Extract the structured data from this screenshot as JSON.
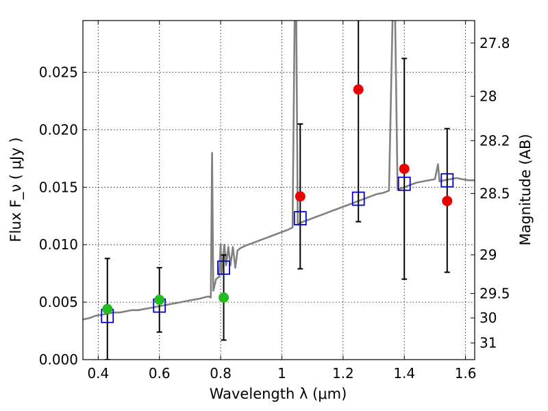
{
  "chart_data": {
    "type": "scatter",
    "title": "",
    "xlabel": "Wavelength  λ (μm)",
    "ylabel": "Flux  F_ν  ( μJy )",
    "ylabel_right": "Magnitude (AB)",
    "xlim": [
      0.35,
      1.63
    ],
    "ylim": [
      0,
      0.0295
    ],
    "grid": true,
    "x_ticks": [
      0.4,
      0.6,
      0.8,
      1.0,
      1.2,
      1.4,
      1.6
    ],
    "x_tick_labels": [
      "0.4",
      "0.6",
      "0.8",
      "1",
      "1.2",
      "1.4",
      "1.6"
    ],
    "y_ticks": [
      0,
      0.005,
      0.01,
      0.015,
      0.02,
      0.025
    ],
    "y_tick_labels": [
      "0.000",
      "0.005",
      "0.010",
      "0.015",
      "0.020",
      "0.025"
    ],
    "right_ticks": [
      {
        "mag": 27.8,
        "label": "27.8"
      },
      {
        "mag": 28.0,
        "label": "28"
      },
      {
        "mag": 28.2,
        "label": "28.2"
      },
      {
        "mag": 28.5,
        "label": "28.5"
      },
      {
        "mag": 29.0,
        "label": "29"
      },
      {
        "mag": 29.5,
        "label": "29.5"
      },
      {
        "mag": 30.0,
        "label": "30"
      },
      {
        "mag": 31.0,
        "label": "31"
      }
    ],
    "colors": {
      "model": "#808080",
      "model_phot": "#0000cc",
      "observed_detection": "#22bb22",
      "observed_upper": "#ee0000",
      "errorbar": "#000000"
    },
    "model_spectrum": [
      [
        0.35,
        0.0035
      ],
      [
        0.37,
        0.0036
      ],
      [
        0.39,
        0.0038
      ],
      [
        0.41,
        0.0039
      ],
      [
        0.43,
        0.004
      ],
      [
        0.45,
        0.0041
      ],
      [
        0.47,
        0.0041
      ],
      [
        0.49,
        0.0042
      ],
      [
        0.51,
        0.0043
      ],
      [
        0.53,
        0.0043
      ],
      [
        0.55,
        0.0044
      ],
      [
        0.57,
        0.0045
      ],
      [
        0.59,
        0.0046
      ],
      [
        0.61,
        0.0047
      ],
      [
        0.63,
        0.0048
      ],
      [
        0.65,
        0.0049
      ],
      [
        0.67,
        0.005
      ],
      [
        0.69,
        0.0051
      ],
      [
        0.71,
        0.0052
      ],
      [
        0.73,
        0.0053
      ],
      [
        0.745,
        0.0054
      ],
      [
        0.76,
        0.0055
      ],
      [
        0.768,
        0.0054
      ],
      [
        0.772,
        0.018
      ],
      [
        0.776,
        0.006
      ],
      [
        0.785,
        0.007
      ],
      [
        0.795,
        0.0072
      ],
      [
        0.8,
        0.01
      ],
      [
        0.803,
        0.0074
      ],
      [
        0.808,
        0.009
      ],
      [
        0.812,
        0.01
      ],
      [
        0.818,
        0.0082
      ],
      [
        0.825,
        0.0098
      ],
      [
        0.832,
        0.0082
      ],
      [
        0.84,
        0.0098
      ],
      [
        0.848,
        0.008
      ],
      [
        0.855,
        0.0095
      ],
      [
        0.865,
        0.0097
      ],
      [
        0.88,
        0.0099
      ],
      [
        0.9,
        0.0101
      ],
      [
        0.92,
        0.0103
      ],
      [
        0.94,
        0.0105
      ],
      [
        0.96,
        0.0107
      ],
      [
        0.98,
        0.0109
      ],
      [
        1.0,
        0.0111
      ],
      [
        1.02,
        0.0113
      ],
      [
        1.035,
        0.0115
      ],
      [
        1.042,
        0.03
      ],
      [
        1.047,
        0.03
      ],
      [
        1.052,
        0.0118
      ],
      [
        1.07,
        0.012
      ],
      [
        1.09,
        0.0122
      ],
      [
        1.11,
        0.0124
      ],
      [
        1.13,
        0.0126
      ],
      [
        1.15,
        0.0128
      ],
      [
        1.17,
        0.013
      ],
      [
        1.19,
        0.0132
      ],
      [
        1.21,
        0.0134
      ],
      [
        1.23,
        0.0136
      ],
      [
        1.25,
        0.0138
      ],
      [
        1.27,
        0.014
      ],
      [
        1.29,
        0.0142
      ],
      [
        1.31,
        0.0144
      ],
      [
        1.33,
        0.0145
      ],
      [
        1.35,
        0.0147
      ],
      [
        1.362,
        0.03
      ],
      [
        1.37,
        0.03
      ],
      [
        1.378,
        0.0148
      ],
      [
        1.4,
        0.015
      ],
      [
        1.42,
        0.0152
      ],
      [
        1.44,
        0.0154
      ],
      [
        1.46,
        0.0155
      ],
      [
        1.48,
        0.0156
      ],
      [
        1.5,
        0.0157
      ],
      [
        1.51,
        0.017
      ],
      [
        1.515,
        0.0155
      ],
      [
        1.53,
        0.0156
      ],
      [
        1.55,
        0.0157
      ],
      [
        1.57,
        0.0158
      ],
      [
        1.59,
        0.0157
      ],
      [
        1.61,
        0.0156
      ],
      [
        1.63,
        0.0156
      ]
    ],
    "model_photometry": [
      {
        "x": 0.43,
        "y": 0.0038
      },
      {
        "x": 0.6,
        "y": 0.0047
      },
      {
        "x": 0.81,
        "y": 0.008
      },
      {
        "x": 1.06,
        "y": 0.0123
      },
      {
        "x": 1.25,
        "y": 0.014
      },
      {
        "x": 1.4,
        "y": 0.0153
      },
      {
        "x": 1.54,
        "y": 0.0156
      }
    ],
    "observed": [
      {
        "x": 0.43,
        "y": 0.0044,
        "ylow": 0.0,
        "yhigh": 0.0088,
        "kind": "detection"
      },
      {
        "x": 0.6,
        "y": 0.0052,
        "ylow": 0.0024,
        "yhigh": 0.008,
        "kind": "detection"
      },
      {
        "x": 0.81,
        "y": 0.0054,
        "ylow": 0.0017,
        "yhigh": 0.0091,
        "kind": "detection"
      },
      {
        "x": 1.06,
        "y": 0.0142,
        "ylow": 0.0079,
        "yhigh": 0.0205,
        "kind": "upper"
      },
      {
        "x": 1.25,
        "y": 0.0235,
        "ylow": 0.012,
        "yhigh": 0.03,
        "kind": "upper"
      },
      {
        "x": 1.4,
        "y": 0.0166,
        "ylow": 0.007,
        "yhigh": 0.0262,
        "kind": "upper"
      },
      {
        "x": 1.54,
        "y": 0.0138,
        "ylow": 0.0076,
        "yhigh": 0.0201,
        "kind": "upper"
      }
    ]
  }
}
